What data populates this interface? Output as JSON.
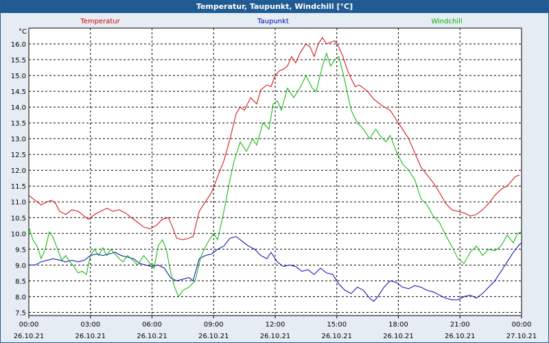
{
  "window": {
    "title": "Temperatur, Taupunkt, Windchill [°C]"
  },
  "chart_data": {
    "type": "line",
    "title": "Temperatur, Taupunkt, Windchill [°C]",
    "ylabel": "°C",
    "ylim": [
      7.4,
      16.5
    ],
    "xlim": [
      0,
      24
    ],
    "yticks": [
      "16.0",
      "15.5",
      "15.0",
      "14.5",
      "14.0",
      "13.5",
      "13.0",
      "12.5",
      "12.0",
      "11.5",
      "11.0",
      "10.5",
      "10.0",
      "9.5",
      "9.0",
      "8.5",
      "8.0",
      "7.5"
    ],
    "ytick_values": [
      16.0,
      15.5,
      15.0,
      14.5,
      14.0,
      13.5,
      13.0,
      12.5,
      12.0,
      11.5,
      11.0,
      10.5,
      10.0,
      9.5,
      9.0,
      8.5,
      8.0,
      7.5
    ],
    "xticks": [
      {
        "time": "00:00",
        "date": "26.10.21",
        "hour": 0
      },
      {
        "time": "03:00",
        "date": "26.10.21",
        "hour": 3
      },
      {
        "time": "06:00",
        "date": "26.10.21",
        "hour": 6
      },
      {
        "time": "09:00",
        "date": "26.10.21",
        "hour": 9
      },
      {
        "time": "12:00",
        "date": "26.10.21",
        "hour": 12
      },
      {
        "time": "15:00",
        "date": "26.10.21",
        "hour": 15
      },
      {
        "time": "18:00",
        "date": "26.10.21",
        "hour": 18
      },
      {
        "time": "21:00",
        "date": "26.10.21",
        "hour": 21
      },
      {
        "time": "00:00",
        "date": "27.10.21",
        "hour": 24
      }
    ],
    "grid": true,
    "series": [
      {
        "name": "Temperatur",
        "color": "#d40000",
        "points": [
          [
            0,
            11.2
          ],
          [
            0.3,
            11.05
          ],
          [
            0.6,
            10.9
          ],
          [
            0.9,
            11.0
          ],
          [
            1.1,
            11.05
          ],
          [
            1.3,
            10.95
          ],
          [
            1.5,
            10.7
          ],
          [
            1.8,
            10.6
          ],
          [
            2.1,
            10.75
          ],
          [
            2.4,
            10.7
          ],
          [
            2.7,
            10.55
          ],
          [
            2.9,
            10.45
          ],
          [
            3.2,
            10.6
          ],
          [
            3.5,
            10.7
          ],
          [
            3.8,
            10.8
          ],
          [
            4.1,
            10.7
          ],
          [
            4.4,
            10.75
          ],
          [
            4.7,
            10.65
          ],
          [
            5.0,
            10.5
          ],
          [
            5.3,
            10.35
          ],
          [
            5.6,
            10.2
          ],
          [
            5.9,
            10.15
          ],
          [
            6.2,
            10.25
          ],
          [
            6.5,
            10.45
          ],
          [
            6.8,
            10.5
          ],
          [
            7.0,
            10.2
          ],
          [
            7.2,
            9.85
          ],
          [
            7.5,
            9.8
          ],
          [
            7.8,
            9.85
          ],
          [
            8.0,
            9.9
          ],
          [
            8.3,
            10.7
          ],
          [
            8.6,
            11.0
          ],
          [
            8.9,
            11.3
          ],
          [
            9.2,
            11.8
          ],
          [
            9.5,
            12.3
          ],
          [
            9.8,
            13.0
          ],
          [
            10.1,
            13.8
          ],
          [
            10.3,
            14.0
          ],
          [
            10.5,
            13.9
          ],
          [
            10.8,
            14.3
          ],
          [
            11.1,
            14.1
          ],
          [
            11.3,
            14.55
          ],
          [
            11.6,
            14.7
          ],
          [
            11.8,
            14.65
          ],
          [
            12.0,
            15.0
          ],
          [
            12.2,
            15.15
          ],
          [
            12.4,
            15.2
          ],
          [
            12.6,
            15.3
          ],
          [
            12.8,
            15.6
          ],
          [
            13.0,
            15.4
          ],
          [
            13.2,
            15.7
          ],
          [
            13.5,
            16.0
          ],
          [
            13.7,
            15.9
          ],
          [
            13.9,
            15.6
          ],
          [
            14.1,
            16.0
          ],
          [
            14.3,
            16.2
          ],
          [
            14.5,
            16.0
          ],
          [
            14.7,
            16.05
          ],
          [
            14.9,
            16.1
          ],
          [
            15.1,
            15.9
          ],
          [
            15.3,
            15.6
          ],
          [
            15.5,
            15.2
          ],
          [
            15.7,
            14.9
          ],
          [
            15.9,
            14.65
          ],
          [
            16.1,
            14.7
          ],
          [
            16.3,
            14.6
          ],
          [
            16.5,
            14.5
          ],
          [
            16.8,
            14.25
          ],
          [
            17.0,
            14.15
          ],
          [
            17.3,
            14.0
          ],
          [
            17.6,
            13.9
          ],
          [
            17.9,
            13.6
          ],
          [
            18.2,
            13.3
          ],
          [
            18.5,
            13.0
          ],
          [
            18.8,
            12.55
          ],
          [
            19.1,
            12.1
          ],
          [
            19.4,
            11.85
          ],
          [
            19.7,
            11.6
          ],
          [
            20.0,
            11.3
          ],
          [
            20.3,
            10.95
          ],
          [
            20.6,
            10.75
          ],
          [
            20.9,
            10.7
          ],
          [
            21.2,
            10.65
          ],
          [
            21.5,
            10.55
          ],
          [
            21.8,
            10.6
          ],
          [
            22.1,
            10.75
          ],
          [
            22.4,
            10.95
          ],
          [
            22.7,
            11.2
          ],
          [
            23.0,
            11.4
          ],
          [
            23.3,
            11.5
          ],
          [
            23.5,
            11.65
          ],
          [
            23.7,
            11.8
          ],
          [
            23.9,
            11.85
          ]
        ]
      },
      {
        "name": "Taupunkt",
        "color": "#0000b4",
        "points": [
          [
            0,
            9.0
          ],
          [
            0.3,
            9.0
          ],
          [
            0.6,
            9.1
          ],
          [
            0.9,
            9.15
          ],
          [
            1.2,
            9.2
          ],
          [
            1.5,
            9.15
          ],
          [
            1.8,
            9.1
          ],
          [
            2.1,
            9.15
          ],
          [
            2.4,
            9.1
          ],
          [
            2.7,
            9.15
          ],
          [
            3.0,
            9.3
          ],
          [
            3.3,
            9.35
          ],
          [
            3.6,
            9.3
          ],
          [
            3.9,
            9.35
          ],
          [
            4.2,
            9.4
          ],
          [
            4.5,
            9.3
          ],
          [
            4.8,
            9.25
          ],
          [
            5.1,
            9.2
          ],
          [
            5.4,
            9.05
          ],
          [
            5.7,
            9.0
          ],
          [
            6.0,
            8.95
          ],
          [
            6.3,
            9.0
          ],
          [
            6.6,
            8.9
          ],
          [
            6.9,
            8.6
          ],
          [
            7.2,
            8.5
          ],
          [
            7.5,
            8.55
          ],
          [
            7.8,
            8.6
          ],
          [
            8.0,
            8.5
          ],
          [
            8.3,
            9.2
          ],
          [
            8.6,
            9.3
          ],
          [
            8.9,
            9.35
          ],
          [
            9.2,
            9.5
          ],
          [
            9.5,
            9.6
          ],
          [
            9.8,
            9.85
          ],
          [
            10.1,
            9.9
          ],
          [
            10.4,
            9.75
          ],
          [
            10.7,
            9.6
          ],
          [
            11.0,
            9.5
          ],
          [
            11.3,
            9.3
          ],
          [
            11.6,
            9.2
          ],
          [
            11.8,
            9.4
          ],
          [
            12.1,
            9.1
          ],
          [
            12.4,
            8.95
          ],
          [
            12.7,
            9.0
          ],
          [
            13.0,
            8.95
          ],
          [
            13.3,
            8.8
          ],
          [
            13.6,
            8.85
          ],
          [
            13.9,
            8.7
          ],
          [
            14.2,
            8.9
          ],
          [
            14.5,
            8.75
          ],
          [
            14.8,
            8.7
          ],
          [
            15.1,
            8.4
          ],
          [
            15.4,
            8.2
          ],
          [
            15.7,
            8.1
          ],
          [
            16.0,
            8.3
          ],
          [
            16.3,
            8.2
          ],
          [
            16.6,
            7.95
          ],
          [
            16.8,
            7.85
          ],
          [
            17.0,
            8.0
          ],
          [
            17.3,
            8.3
          ],
          [
            17.6,
            8.5
          ],
          [
            17.9,
            8.45
          ],
          [
            18.2,
            8.3
          ],
          [
            18.5,
            8.25
          ],
          [
            18.8,
            8.35
          ],
          [
            19.1,
            8.3
          ],
          [
            19.4,
            8.2
          ],
          [
            19.7,
            8.15
          ],
          [
            20.0,
            8.05
          ],
          [
            20.3,
            7.95
          ],
          [
            20.6,
            7.9
          ],
          [
            20.9,
            7.9
          ],
          [
            21.2,
            8.0
          ],
          [
            21.5,
            8.05
          ],
          [
            21.8,
            7.95
          ],
          [
            22.1,
            8.1
          ],
          [
            22.4,
            8.3
          ],
          [
            22.7,
            8.5
          ],
          [
            23.0,
            8.8
          ],
          [
            23.3,
            9.1
          ],
          [
            23.6,
            9.4
          ],
          [
            23.9,
            9.65
          ],
          [
            24.0,
            9.7
          ]
        ]
      },
      {
        "name": "Windchill",
        "color": "#00b400",
        "points": [
          [
            0,
            10.2
          ],
          [
            0.2,
            9.8
          ],
          [
            0.4,
            9.6
          ],
          [
            0.6,
            9.2
          ],
          [
            0.8,
            9.5
          ],
          [
            1.0,
            10.05
          ],
          [
            1.2,
            9.85
          ],
          [
            1.4,
            9.5
          ],
          [
            1.6,
            9.15
          ],
          [
            1.8,
            9.3
          ],
          [
            2.0,
            9.1
          ],
          [
            2.2,
            8.95
          ],
          [
            2.4,
            8.75
          ],
          [
            2.6,
            8.8
          ],
          [
            2.8,
            8.7
          ],
          [
            3.0,
            9.3
          ],
          [
            3.2,
            9.5
          ],
          [
            3.4,
            9.3
          ],
          [
            3.6,
            9.55
          ],
          [
            3.8,
            9.3
          ],
          [
            4.0,
            9.5
          ],
          [
            4.2,
            9.35
          ],
          [
            4.4,
            9.2
          ],
          [
            4.6,
            9.1
          ],
          [
            4.8,
            9.3
          ],
          [
            5.0,
            9.2
          ],
          [
            5.3,
            9.0
          ],
          [
            5.6,
            9.3
          ],
          [
            5.9,
            9.05
          ],
          [
            6.1,
            8.9
          ],
          [
            6.3,
            9.6
          ],
          [
            6.5,
            9.8
          ],
          [
            6.7,
            9.5
          ],
          [
            6.9,
            8.8
          ],
          [
            7.1,
            8.3
          ],
          [
            7.3,
            8.0
          ],
          [
            7.5,
            8.2
          ],
          [
            7.8,
            8.3
          ],
          [
            8.1,
            8.5
          ],
          [
            8.4,
            9.3
          ],
          [
            8.7,
            9.7
          ],
          [
            9.0,
            10.0
          ],
          [
            9.2,
            9.8
          ],
          [
            9.5,
            10.7
          ],
          [
            9.8,
            11.7
          ],
          [
            10.0,
            12.3
          ],
          [
            10.3,
            12.9
          ],
          [
            10.6,
            12.6
          ],
          [
            10.9,
            13.0
          ],
          [
            11.1,
            12.8
          ],
          [
            11.4,
            13.5
          ],
          [
            11.7,
            13.3
          ],
          [
            11.9,
            14.1
          ],
          [
            12.1,
            14.2
          ],
          [
            12.3,
            13.9
          ],
          [
            12.6,
            14.6
          ],
          [
            12.9,
            14.3
          ],
          [
            13.2,
            14.6
          ],
          [
            13.5,
            15.0
          ],
          [
            13.8,
            14.6
          ],
          [
            14.0,
            14.5
          ],
          [
            14.3,
            15.3
          ],
          [
            14.5,
            15.7
          ],
          [
            14.7,
            15.3
          ],
          [
            14.9,
            15.5
          ],
          [
            15.1,
            15.6
          ],
          [
            15.3,
            15.1
          ],
          [
            15.5,
            14.5
          ],
          [
            15.7,
            13.9
          ],
          [
            16.0,
            13.5
          ],
          [
            16.3,
            13.3
          ],
          [
            16.6,
            13.0
          ],
          [
            16.9,
            13.3
          ],
          [
            17.1,
            13.1
          ],
          [
            17.4,
            12.9
          ],
          [
            17.6,
            13.1
          ],
          [
            17.9,
            12.6
          ],
          [
            18.2,
            12.2
          ],
          [
            18.5,
            12.0
          ],
          [
            18.8,
            11.7
          ],
          [
            19.1,
            11.1
          ],
          [
            19.4,
            10.9
          ],
          [
            19.7,
            10.55
          ],
          [
            20.0,
            10.35
          ],
          [
            20.3,
            9.95
          ],
          [
            20.6,
            9.6
          ],
          [
            20.9,
            9.2
          ],
          [
            21.2,
            9.05
          ],
          [
            21.5,
            9.4
          ],
          [
            21.8,
            9.6
          ],
          [
            22.1,
            9.3
          ],
          [
            22.4,
            9.5
          ],
          [
            22.7,
            9.45
          ],
          [
            23.0,
            9.6
          ],
          [
            23.3,
            9.95
          ],
          [
            23.6,
            9.7
          ],
          [
            23.8,
            10.0
          ],
          [
            24.0,
            10.05
          ]
        ]
      }
    ]
  }
}
